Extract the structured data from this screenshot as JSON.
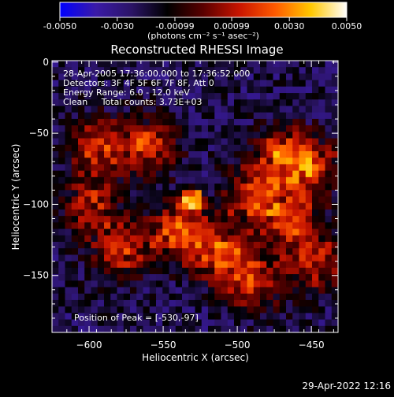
{
  "colorbar": {
    "tick_labels": [
      "-0.0050",
      "-0.0030",
      "-0.00099",
      "0.00099",
      "0.0030",
      "0.0050"
    ],
    "tick_values": [
      -0.005,
      -0.003,
      -0.00099,
      0.00099,
      0.003,
      0.005
    ],
    "range": [
      -0.005,
      0.005
    ],
    "unit_label": "(photons cm⁻² s⁻¹ asec⁻²)"
  },
  "chart_data": {
    "type": "heatmap",
    "title": "Reconstructed RHESSI Image",
    "xlabel": "Heliocentric X (arcsec)",
    "ylabel": "Heliocentric Y (arcsec)",
    "xlim": [
      -625,
      -432
    ],
    "ylim": [
      -190,
      1
    ],
    "xticks": [
      -600,
      -550,
      -500,
      -450
    ],
    "yticks": [
      0,
      -50,
      -100,
      -150
    ],
    "xtick_labels": [
      "−600",
      "−550",
      "−500",
      "−450"
    ],
    "ytick_labels": [
      "0",
      "−50",
      "−100",
      "−150"
    ],
    "annotations": [
      "28-Apr-2005 17:36:00.000 to 17:36:52.000",
      "Detectors: 3F 4F 5F 6F 7F 8F, Att 0",
      "Energy Range: 6.0 - 12.0 keV",
      "Clean     Total counts: 3.73E+03"
    ],
    "peak_label": "Position of Peak = [-530,-97]",
    "peak": [
      -530,
      -97
    ],
    "sources": [
      {
        "x": -530,
        "y": -97,
        "value": 0.005
      },
      {
        "x": -560,
        "y": -60,
        "value": 0.0022
      },
      {
        "x": -595,
        "y": -60,
        "value": 0.0018
      },
      {
        "x": -540,
        "y": -120,
        "value": 0.0025
      },
      {
        "x": -510,
        "y": -135,
        "value": 0.0022
      },
      {
        "x": -578,
        "y": -132,
        "value": 0.002
      },
      {
        "x": -470,
        "y": -65,
        "value": 0.0022
      },
      {
        "x": -450,
        "y": -75,
        "value": 0.002
      },
      {
        "x": -490,
        "y": -95,
        "value": 0.0018
      },
      {
        "x": -465,
        "y": -110,
        "value": 0.002
      },
      {
        "x": -448,
        "y": -140,
        "value": 0.0018
      },
      {
        "x": -490,
        "y": -155,
        "value": 0.0016
      },
      {
        "x": -600,
        "y": -100,
        "value": 0.0014
      }
    ],
    "colormap": [
      "#0000ff",
      "#3a1aa8",
      "#2b1466",
      "#000000",
      "#5a0000",
      "#c81400",
      "#ff5a00",
      "#ffc800",
      "#ffffff"
    ]
  },
  "footer": {
    "date_time": "29-Apr-2022 12:16"
  }
}
